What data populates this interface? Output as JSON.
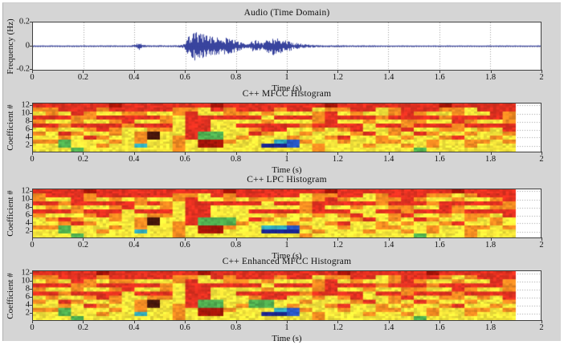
{
  "figure": {
    "background": "#d5d5d5",
    "plot_background": "#ffffff",
    "frame_color": "#3f3f3f",
    "grid_color": "#9b9b9b",
    "text_color": "#101010",
    "waveform_color": "#2e3a99"
  },
  "axis": {
    "x_ticks": [
      "0",
      "0.2",
      "0.4",
      "0.6",
      "0.8",
      "1",
      "1.2",
      "1.4",
      "1.6",
      "1.8",
      "2"
    ]
  },
  "plots": [
    {
      "title": "Audio (Time Domain)",
      "ylabel": "Frequency (Hz)",
      "xlabel": "Time (s)",
      "y_ticks": [
        "0.2",
        "0",
        "-0.2"
      ]
    },
    {
      "title": "C++ MFCC Histogram",
      "ylabel": "Coefficient #",
      "xlabel": "Time (s)",
      "y_ticks": [
        "12",
        "10",
        "8",
        "6",
        "4",
        "2"
      ]
    },
    {
      "title": "C++ LPC Histogram",
      "ylabel": "Coefficient #",
      "xlabel": "Time (s)",
      "y_ticks": [
        "12",
        "10",
        "8",
        "6",
        "4",
        "2"
      ]
    },
    {
      "title": "C++ Enhanced MFCC Histogram",
      "ylabel": "Coefficient #",
      "xlabel": "Time (s)",
      "y_ticks": [
        "12",
        "10",
        "8",
        "6",
        "4",
        "2"
      ]
    }
  ],
  "chart_data": [
    {
      "type": "line",
      "title": "Audio (Time Domain)",
      "xlabel": "Time (s)",
      "ylabel": "Frequency (Hz)",
      "xlim": [
        0,
        2
      ],
      "ylim": [
        -0.2,
        0.2
      ],
      "x_tick_values": [
        0,
        0.2,
        0.4,
        0.6,
        0.8,
        1,
        1.2,
        1.4,
        1.6,
        1.8,
        2
      ],
      "y_tick_values": [
        0.2,
        0,
        -0.2
      ],
      "color": "#2e3a99",
      "description": "speech waveform, near-silent with small blip at 0.42s, loud voiced burst 0.6-1.05s, silence after",
      "envelope": [
        [
          0,
          0.006
        ],
        [
          0.38,
          0.007
        ],
        [
          0.405,
          0.012
        ],
        [
          0.418,
          0.045
        ],
        [
          0.432,
          0.012
        ],
        [
          0.45,
          0.007
        ],
        [
          0.57,
          0.008
        ],
        [
          0.595,
          0.02
        ],
        [
          0.615,
          0.09
        ],
        [
          0.64,
          0.13
        ],
        [
          0.66,
          0.115
        ],
        [
          0.69,
          0.085
        ],
        [
          0.72,
          0.075
        ],
        [
          0.75,
          0.08
        ],
        [
          0.78,
          0.065
        ],
        [
          0.81,
          0.045
        ],
        [
          0.835,
          0.018
        ],
        [
          0.85,
          0.016
        ],
        [
          0.865,
          0.045
        ],
        [
          0.885,
          0.055
        ],
        [
          0.905,
          0.022
        ],
        [
          0.925,
          0.07
        ],
        [
          0.95,
          0.08
        ],
        [
          0.975,
          0.06
        ],
        [
          1.0,
          0.05
        ],
        [
          1.03,
          0.03
        ],
        [
          1.07,
          0.016
        ],
        [
          1.12,
          0.01
        ],
        [
          1.25,
          0.007
        ],
        [
          1.5,
          0.006
        ],
        [
          2,
          0.006
        ]
      ]
    },
    {
      "type": "heatmap",
      "title": "C++ MFCC Histogram",
      "xlabel": "Time (s)",
      "ylabel": "Coefficient #",
      "xlim": [
        0,
        2
      ],
      "data_x_range": [
        0,
        1.9
      ],
      "y_range": [
        1,
        12
      ],
      "y_tick_values": [
        2,
        4,
        6,
        8,
        10,
        12
      ],
      "palette": {
        "r": "#df3020",
        "R": "#a51408",
        "o": "#f28a21",
        "y": "#f3e33a",
        "g": "#4fae4f",
        "t": "#2fa8b8",
        "b": "#2858c8",
        "n": "#1a2590",
        "k": "#46150a"
      },
      "rows_top_to_bottom": [
        "rrrrrrRrrrrrrrRrrrrrrrrRrrrrrrrrRrrrrr",
        "oorrrorrrrrooyrorrrorryoorryorrrooyrrr",
        "yoyroyyooyyoryyooyoyyyoryoyyoroyyoyyro",
        "rrroorrrrroyrrrrrryrrrorrrrorrrrorrrro",
        "oyyoyyoryyoyrryyyyoyyyoryyoyyooyyroyyo",
        "rrorrrrorrryrryyrrrrrorrrryrrorrrorrrr",
        "yoyyoroyyooyrryyyorryyoyoryyoryyooyoyr",
        "oyroyyoyokyyrggyyroyyoyyyoryoyroyyoyyo",
        "yyoyroyyokyorggyoyyyoyyoryyoyoyyoryyoy",
        "oogyyyoyoyyoyRRoyyytboyyoyyooyyoyyooyo",
        "yygyyoyytyyoyRRyyynnbyoyyyoyyoyoyyoyyy",
        "yyygyyyyyyyoyyyyyyyyyyoyyyyyyygyyyyyyy"
      ]
    },
    {
      "type": "heatmap",
      "title": "C++ LPC Histogram",
      "xlabel": "Time (s)",
      "ylabel": "Coefficient #",
      "xlim": [
        0,
        2
      ],
      "data_x_range": [
        0,
        1.9
      ],
      "y_range": [
        1,
        12
      ],
      "y_tick_values": [
        2,
        4,
        6,
        8,
        10,
        12
      ],
      "palette": {
        "r": "#df3020",
        "R": "#a51408",
        "o": "#f28a21",
        "y": "#f3e33a",
        "g": "#4fae4f",
        "t": "#2fa8b8",
        "b": "#2858c8",
        "n": "#1a2590",
        "k": "#46150a"
      },
      "rows_top_to_bottom": [
        "rrrrRrrrrrrrrrrRrrrrrrrRrrrrrrrrrRrrrr",
        "orrrorrrrrrooyrorrrrryoorryorrrooyorrr",
        "oyyroyoyoyyoryyoyooyyyoroyyooroyyoyyor",
        "rrorrrrroroyrrrrrryrrorrrrrorrrorrrrro",
        "yoyoyyoryyoyrryyyyyyyoryyoyyooyyroyyoo",
        "rrrorrryrrryrryyyrrrrorrryyrrorrrorrrr",
        "oyyyoroyyooyrryyyyyoyyoyoryyoryyoyooyr",
        "yoroyyoyokyyrgggyroyyoyyyoryoyroyyoyoy",
        "yyoroyyyokyorgggoyyyoyyoryyoyoyyoryyoy",
        "oogyyyoyoyyoyRRoyyttboyyoyyooyyoyyooyo",
        "yygyyoyytyyoyRRyyynnnyoyyyoyyoyoyyoyyy",
        "yyygyyyyyyyoyyyyyyyyyoyyyyyyyygyyyoyyy"
      ]
    },
    {
      "type": "heatmap",
      "title": "C++ Enhanced MFCC Histogram",
      "xlabel": "Time (s)",
      "ylabel": "Coefficient #",
      "xlim": [
        0,
        2
      ],
      "data_x_range": [
        0,
        1.9
      ],
      "y_range": [
        1,
        12
      ],
      "y_tick_values": [
        2,
        4,
        6,
        8,
        10,
        12
      ],
      "palette": {
        "r": "#df3020",
        "R": "#a51408",
        "o": "#f28a21",
        "y": "#f3e33a",
        "g": "#4fae4f",
        "t": "#2fa8b8",
        "b": "#2858c8",
        "n": "#1a2590",
        "k": "#46150a"
      },
      "rows_top_to_bottom": [
        "rrrrrRrrrrrrrRrrrrrrrrrrRrrrrrrRrrrrrr",
        "oorrrorrrrrooyrorrrorryoorryorrroyorrr",
        "yoyroyooyyyoryyooyoyyyoryoyyoroyyoyyro",
        "rrroorrrrroyrrrrrryrrrorrrrorrrorrrrro",
        "oyyoyyoryyoyrryyyyoyyyoryyoyyooyyroyyo",
        "rrorrrryrrryrryyrrrrrorrrryrrorrrorrrr",
        "yoyyoroyyooyrryyyorryyoyoryyoryyooyoyr",
        "oyroyyoyokyyrggyyggyyoyyyoryoyroyyoyyo",
        "yyoyroyyokyorggyoggyoyyoryyoyoyyoryyoy",
        "oogyyyoyoyyoyRRoyyytboyyoyyooyyoyyooyo",
        "yygyyoyytyyoyRRyyynnbyoyyyoyyoyoyyoyyy",
        "yyygyyyyyyyoyyyyyyyyyyoyyyyyyygyyyyyyy"
      ]
    }
  ]
}
